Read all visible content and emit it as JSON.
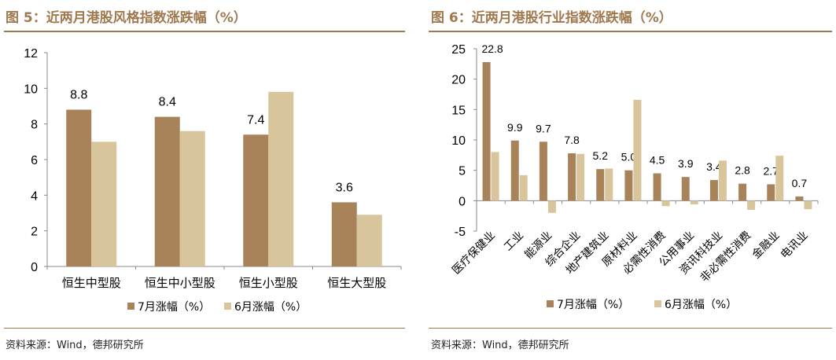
{
  "colors": {
    "july": "#a8835a",
    "june": "#d8c59b",
    "accent": "#a0784e"
  },
  "left": {
    "title": "图 5：近两月港股风格指数涨跌幅（%）",
    "source": "资料来源：Wind，德邦研究所"
  },
  "right": {
    "title": "图 6：近两月港股行业指数涨跌幅（%）",
    "source": "资料来源：Wind，德邦研究所"
  },
  "chart_data": [
    {
      "type": "bar",
      "title": "近两月港股风格指数涨跌幅（%）",
      "categories": [
        "恒生中型股",
        "恒生中小型股",
        "恒生小型股",
        "恒生大型股"
      ],
      "series": [
        {
          "name": "7月涨幅（%）",
          "values": [
            8.8,
            8.4,
            7.4,
            3.6
          ],
          "labels": [
            "8.8",
            "8.4",
            "7.4",
            "3.6"
          ]
        },
        {
          "name": "6月涨幅（%）",
          "values": [
            7.0,
            7.6,
            9.8,
            2.9
          ]
        }
      ],
      "ylim": [
        0,
        12
      ],
      "yticks": [
        "0",
        "2",
        "4",
        "6",
        "8",
        "10",
        "12"
      ],
      "legend": "bottom"
    },
    {
      "type": "bar",
      "title": "近两月港股行业指数涨跌幅（%）",
      "categories": [
        "医疗保健业",
        "工业",
        "能源业",
        "综合企业",
        "地产建筑业",
        "原材料业",
        "必需性消费",
        "公用事业",
        "资讯科技业",
        "非必需性消费",
        "金融业",
        "电讯业"
      ],
      "series": [
        {
          "name": "7月涨幅（%）",
          "values": [
            22.8,
            9.9,
            9.7,
            7.8,
            5.2,
            5.0,
            4.5,
            3.9,
            3.4,
            2.8,
            2.7,
            0.7
          ],
          "labels": [
            "22.8",
            "9.9",
            "9.7",
            "7.8",
            "5.2",
            "5.0",
            "4.5",
            "3.9",
            "3.4",
            "2.8",
            "2.7",
            "0.7"
          ]
        },
        {
          "name": "6月涨幅（%）",
          "values": [
            8.0,
            4.2,
            -2.0,
            7.7,
            5.3,
            16.6,
            -0.9,
            -0.6,
            6.6,
            -1.5,
            7.4,
            -1.4
          ]
        }
      ],
      "ylim": [
        -5,
        25
      ],
      "yticks": [
        "-5",
        "0",
        "5",
        "10",
        "15",
        "20",
        "25"
      ],
      "legend": "bottom"
    }
  ]
}
